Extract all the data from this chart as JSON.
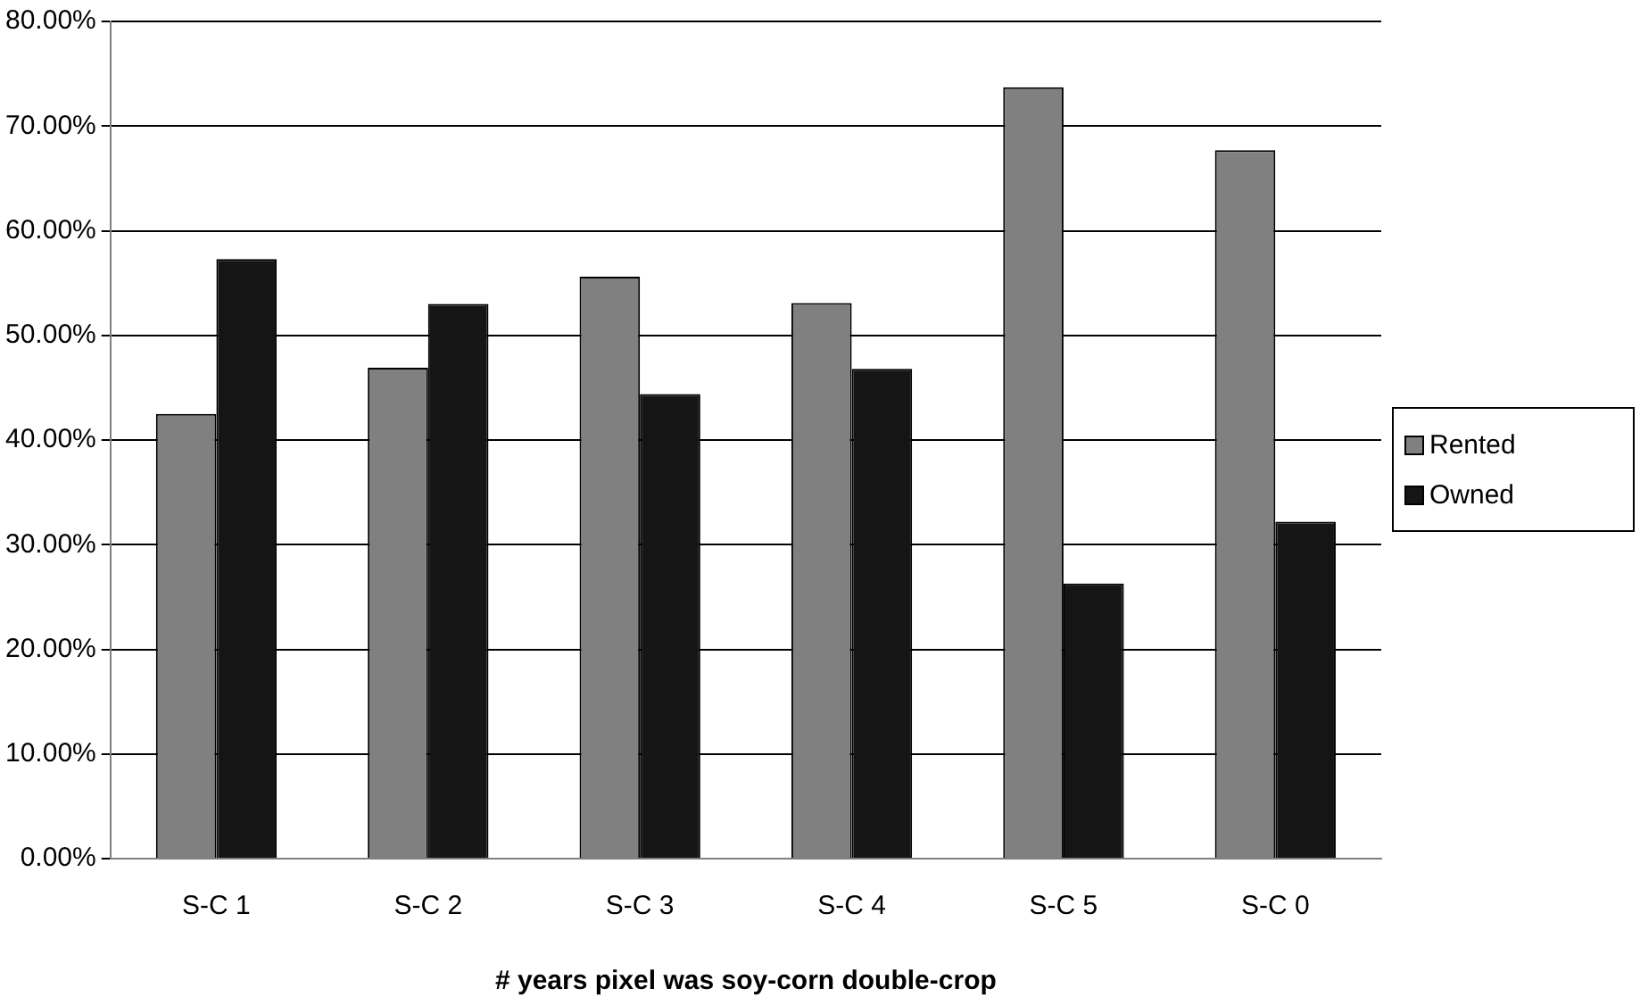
{
  "chart_data": {
    "type": "bar",
    "xlabel": "# years pixel was soy-corn double-crop",
    "categories": [
      "S-C 1",
      "S-C 2",
      "S-C 3",
      "S-C 4",
      "S-C 5",
      "S-C 0"
    ],
    "series": [
      {
        "name": "Rented",
        "color": "#808080",
        "values": [
          42.5,
          46.9,
          55.6,
          53.1,
          73.7,
          67.7
        ]
      },
      {
        "name": "Owned",
        "color": "#151515",
        "values": [
          57.3,
          53.0,
          44.4,
          46.8,
          26.3,
          32.2
        ]
      }
    ],
    "ylim": [
      0,
      80
    ],
    "yticks": [
      {
        "value": 0,
        "label": "0.00%"
      },
      {
        "value": 10,
        "label": "10.00%"
      },
      {
        "value": 20,
        "label": "20.00%"
      },
      {
        "value": 30,
        "label": "30.00%"
      },
      {
        "value": 40,
        "label": "40.00%"
      },
      {
        "value": 50,
        "label": "50.00%"
      },
      {
        "value": 60,
        "label": "60.00%"
      },
      {
        "value": 70,
        "label": "70.00%"
      },
      {
        "value": 80,
        "label": "80.00%"
      }
    ],
    "grid": "y",
    "legend": "right"
  }
}
